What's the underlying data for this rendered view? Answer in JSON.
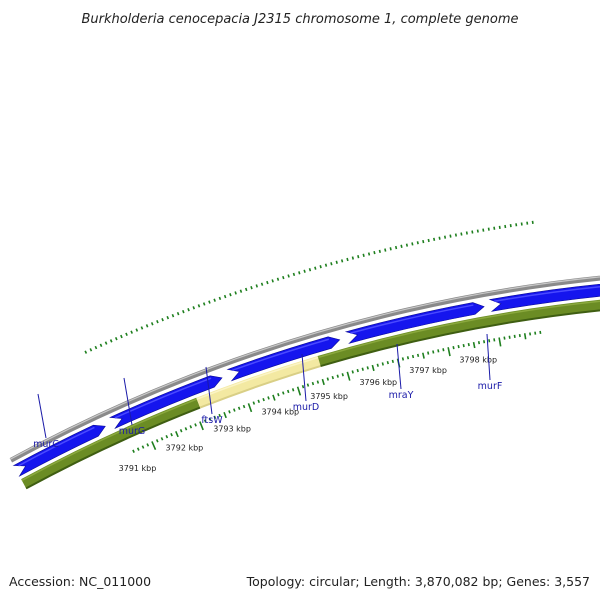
{
  "title": "Burkholderia cenocepacia J2315 chromosome 1, complete genome",
  "footer": {
    "accession": "Accession: NC_011000",
    "summary": "Topology: circular; Length: 3,870,082 bp; Genes: 3,557"
  },
  "colors": {
    "backbone": "#8a8a8a",
    "gene_arrow": "#1515ee",
    "gene_arrow_highlight": "#4a4aff",
    "feature_band": "#6b8c24",
    "feature_band_dark": "#3f5e12",
    "highlight_segment": "#f3e9a2",
    "ticks": "#1e7f1e",
    "gene_label": "#1a1aa8",
    "leader_line": "#1a1aa8"
  },
  "scale": {
    "unit": "kbp",
    "ticks": [
      {
        "value": 3791,
        "label": "3791 kbp"
      },
      {
        "value": 3792,
        "label": "3792 kbp"
      },
      {
        "value": 3793,
        "label": "3793 kbp"
      },
      {
        "value": 3794,
        "label": "3794 kbp"
      },
      {
        "value": 3795,
        "label": "3795 kbp"
      },
      {
        "value": 3796,
        "label": "3796 kbp"
      },
      {
        "value": 3797,
        "label": "3797 kbp"
      },
      {
        "value": 3798,
        "label": "3798 kbp"
      }
    ]
  },
  "genes": [
    {
      "name": "murC"
    },
    {
      "name": "murG"
    },
    {
      "name": "ftsW"
    },
    {
      "name": "murD"
    },
    {
      "name": "mraY"
    },
    {
      "name": "murF"
    }
  ]
}
